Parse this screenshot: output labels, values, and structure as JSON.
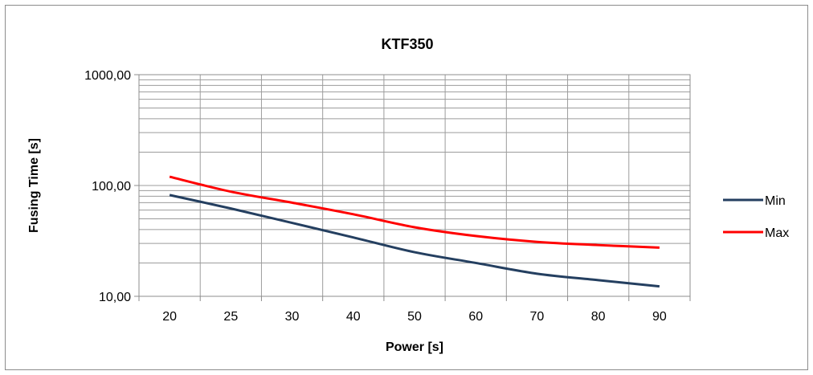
{
  "chart_data": {
    "type": "line",
    "title": "KTF350",
    "xlabel": "Power [s]",
    "ylabel": "Fusing Time [s]",
    "y_scale": "log",
    "ylim": [
      10,
      1000
    ],
    "y_ticks": [
      "10,00",
      "100,00",
      "1000,00"
    ],
    "categories": [
      "20",
      "25",
      "30",
      "40",
      "50",
      "60",
      "70",
      "80",
      "90"
    ],
    "series": [
      {
        "name": "Min",
        "color": "#243f60",
        "values": [
          82,
          62,
          46,
          34,
          25,
          20,
          16,
          14,
          12.3
        ]
      },
      {
        "name": "Max",
        "color": "#ff0000",
        "values": [
          120,
          88,
          70,
          55,
          42,
          35,
          31,
          29,
          27.5
        ]
      }
    ],
    "grid": true,
    "legend_position": "right"
  }
}
